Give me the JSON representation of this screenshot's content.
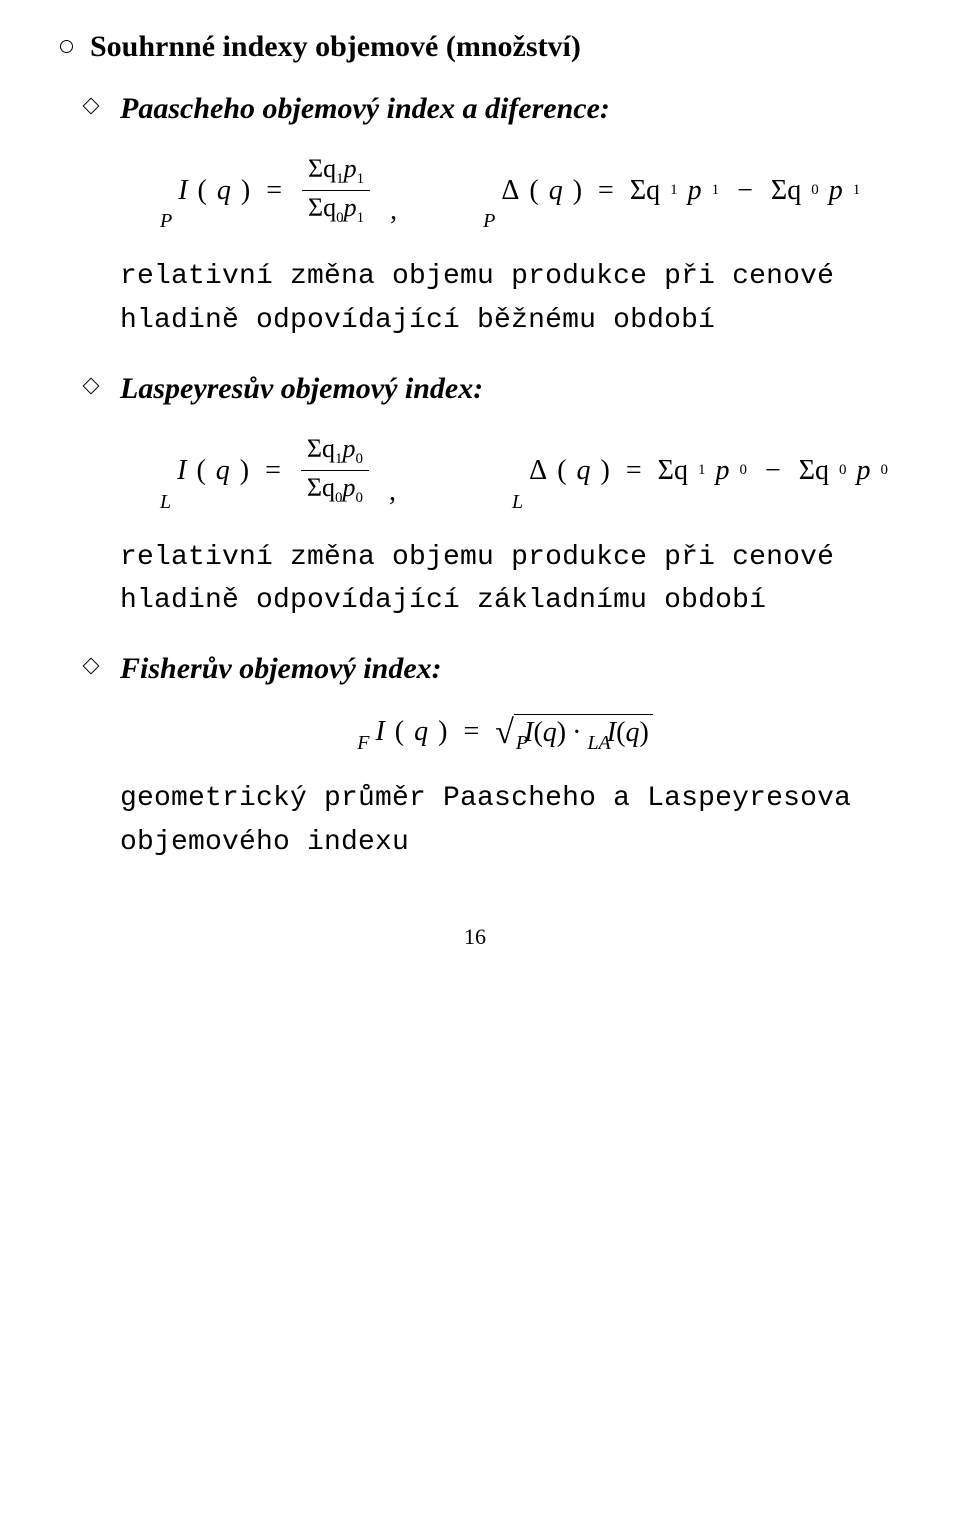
{
  "section": {
    "title": "Souhrnné indexy objemové (množství)"
  },
  "paasche": {
    "title": "Paascheho objemový index a diference:",
    "presub_I": "P",
    "func_I": "I",
    "arg": "q",
    "num": "Σq",
    "num_sub1": "1",
    "num_p": "p",
    "num_sub2": "1",
    "den": "Σq",
    "den_sub1": "0",
    "den_p": "p",
    "den_sub2": "1",
    "presub_D": "P",
    "func_D": "Δ",
    "rhs_a": "Σq",
    "rhs_a_sub1": "1",
    "rhs_a_p": "p",
    "rhs_a_sub2": "1",
    "rhs_b": "Σq",
    "rhs_b_sub1": "0",
    "rhs_b_p": "p",
    "rhs_b_sub2": "1",
    "desc": "relativní změna objemu produkce při cenové hladině odpovídající běžnému období"
  },
  "laspeyres": {
    "title": "Laspeyresův objemový index:",
    "presub_I": "L",
    "func_I": "I",
    "arg": "q",
    "num": "Σq",
    "num_sub1": "1",
    "num_p": "p",
    "num_sub2": "0",
    "den": "Σq",
    "den_sub1": "0",
    "den_p": "p",
    "den_sub2": "0",
    "presub_D": "L",
    "func_D": "Δ",
    "rhs_a": "Σq",
    "rhs_a_sub1": "1",
    "rhs_a_p": "p",
    "rhs_a_sub2": "0",
    "rhs_b": "Σq",
    "rhs_b_sub1": "0",
    "rhs_b_p": "p",
    "rhs_b_sub2": "0",
    "desc": "relativní změna objemu produkce při cenové hladině odpovídající základnímu období"
  },
  "fisher": {
    "title": "Fisherův objemový index:",
    "presub": "F",
    "func_I": "I",
    "arg": "q",
    "sqrt_presub1": "P",
    "sqrt_func1": "I",
    "sqrt_arg1": "q",
    "sqrt_presub2": "LA",
    "sqrt_func2": "I",
    "sqrt_arg2": "q",
    "desc": "geometrický průměr Paascheho a Laspeyresova objemového indexu"
  },
  "page_number": "16"
}
